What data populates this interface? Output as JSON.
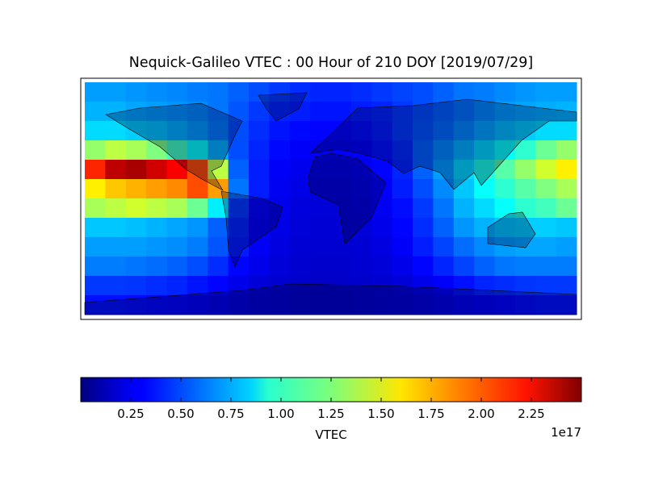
{
  "chart_data": {
    "type": "heatmap",
    "title": "Nequick-Galileo VTEC : 00 Hour of 210 DOY [2019/07/29]",
    "colorbar_label": "VTEC",
    "colorbar_offset": "1e17",
    "colormap": "jet",
    "clim": [
      0,
      2.5
    ],
    "colorbar_ticks": [
      0.25,
      {
        "value": 0.5,
        "label": "0.50"
      },
      0.75,
      {
        "value": 1,
        "label": "1.00"
      },
      1.25,
      {
        "value": 1.5,
        "label": "1.50"
      },
      1.75,
      {
        "value": 2,
        "label": "2.00"
      },
      2.25
    ],
    "values": [
      [
        0.7,
        0.7,
        0.68,
        0.66,
        0.64,
        0.62,
        0.6,
        0.55,
        0.5,
        0.45,
        0.42,
        0.4,
        0.4,
        0.42,
        0.45,
        0.48,
        0.5,
        0.55,
        0.6,
        0.62,
        0.65,
        0.68,
        0.7,
        0.7
      ],
      [
        0.75,
        0.75,
        0.72,
        0.7,
        0.68,
        0.65,
        0.6,
        0.52,
        0.45,
        0.4,
        0.38,
        0.36,
        0.36,
        0.38,
        0.4,
        0.45,
        0.5,
        0.55,
        0.6,
        0.65,
        0.7,
        0.72,
        0.74,
        0.75
      ],
      [
        0.85,
        0.85,
        0.82,
        0.8,
        0.75,
        0.7,
        0.62,
        0.5,
        0.42,
        0.36,
        0.33,
        0.32,
        0.32,
        0.34,
        0.38,
        0.45,
        0.52,
        0.58,
        0.65,
        0.72,
        0.78,
        0.82,
        0.85,
        0.85
      ],
      [
        1.3,
        1.4,
        1.35,
        1.25,
        1.1,
        0.95,
        0.75,
        0.5,
        0.4,
        0.33,
        0.3,
        0.28,
        0.28,
        0.3,
        0.35,
        0.42,
        0.55,
        0.65,
        0.75,
        0.85,
        0.95,
        1.05,
        1.2,
        1.3
      ],
      [
        2.1,
        2.35,
        2.4,
        2.3,
        2.2,
        2.0,
        1.4,
        0.55,
        0.38,
        0.3,
        0.27,
        0.25,
        0.25,
        0.27,
        0.32,
        0.4,
        0.55,
        0.7,
        0.85,
        1.0,
        1.15,
        1.3,
        1.45,
        1.6
      ],
      [
        1.6,
        1.7,
        1.75,
        1.8,
        1.85,
        2.0,
        1.8,
        0.6,
        0.38,
        0.28,
        0.25,
        0.23,
        0.23,
        0.25,
        0.3,
        0.38,
        0.5,
        0.65,
        0.8,
        0.95,
        1.05,
        1.15,
        1.25,
        1.35
      ],
      [
        1.35,
        1.4,
        1.45,
        1.4,
        1.35,
        1.2,
        0.9,
        0.45,
        0.32,
        0.26,
        0.23,
        0.22,
        0.22,
        0.23,
        0.28,
        0.34,
        0.45,
        0.6,
        0.75,
        0.85,
        0.95,
        1.05,
        1.1,
        1.2
      ],
      [
        0.8,
        0.8,
        0.78,
        0.75,
        0.72,
        0.68,
        0.55,
        0.4,
        0.3,
        0.25,
        0.22,
        0.21,
        0.21,
        0.22,
        0.26,
        0.32,
        0.42,
        0.55,
        0.68,
        0.75,
        0.8,
        0.82,
        0.82,
        0.8
      ],
      [
        0.7,
        0.7,
        0.7,
        0.68,
        0.66,
        0.62,
        0.52,
        0.38,
        0.29,
        0.24,
        0.21,
        0.2,
        0.2,
        0.21,
        0.24,
        0.3,
        0.38,
        0.48,
        0.58,
        0.65,
        0.7,
        0.72,
        0.72,
        0.7
      ],
      [
        0.62,
        0.62,
        0.6,
        0.58,
        0.55,
        0.5,
        0.42,
        0.32,
        0.26,
        0.22,
        0.2,
        0.19,
        0.19,
        0.2,
        0.22,
        0.26,
        0.32,
        0.4,
        0.48,
        0.55,
        0.6,
        0.62,
        0.62,
        0.62
      ],
      [
        0.45,
        0.45,
        0.44,
        0.42,
        0.4,
        0.36,
        0.32,
        0.26,
        0.22,
        0.2,
        0.19,
        0.18,
        0.18,
        0.19,
        0.2,
        0.22,
        0.26,
        0.3,
        0.35,
        0.4,
        0.42,
        0.44,
        0.45,
        0.45
      ],
      [
        0.35,
        0.35,
        0.34,
        0.33,
        0.32,
        0.3,
        0.27,
        0.24,
        0.21,
        0.2,
        0.19,
        0.18,
        0.18,
        0.19,
        0.2,
        0.21,
        0.23,
        0.25,
        0.28,
        0.3,
        0.32,
        0.34,
        0.35,
        0.35
      ]
    ]
  }
}
